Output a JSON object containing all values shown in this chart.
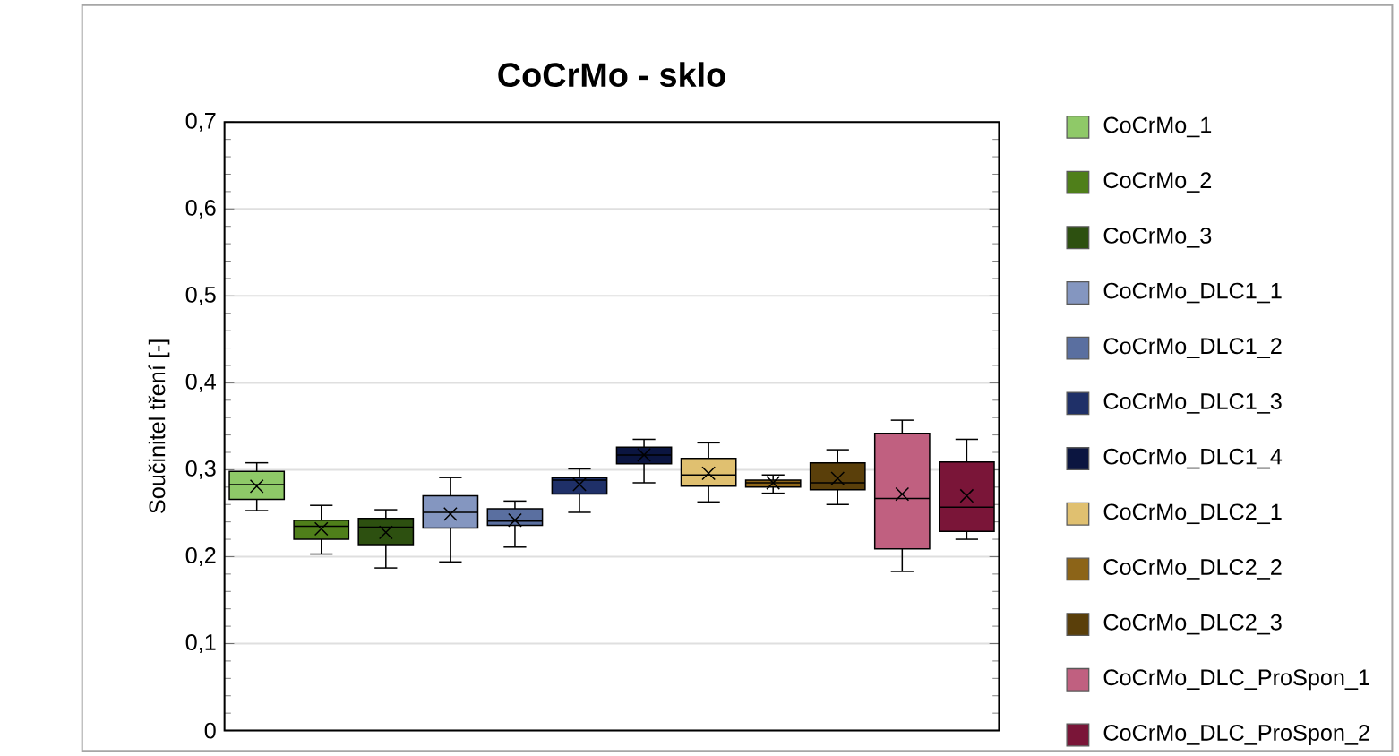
{
  "chart_data": {
    "type": "box",
    "title": "CoCrMo - sklo",
    "ylabel": "Součinitel tření [-]",
    "categories": [
      null,
      null,
      null,
      null,
      null,
      null,
      null,
      null,
      null,
      null,
      null,
      null
    ],
    "ylim": [
      0,
      0.7
    ],
    "yticks": [
      0,
      {
        "value": 0.1,
        "label": "0,1"
      },
      {
        "value": 0.2,
        "label": "0,2"
      },
      {
        "value": 0.3,
        "label": "0,3"
      },
      {
        "value": 0.4,
        "label": "0,4"
      },
      {
        "value": 0.5,
        "label": "0,5"
      },
      {
        "value": 0.6,
        "label": "0,6"
      },
      {
        "value": 0.7,
        "label": "0,7"
      }
    ],
    "grid": "y",
    "legend": "right",
    "series": [
      {
        "name": "CoCrMo_1",
        "color": "#8fc968",
        "boxes": [
          {
            "low": 0.253,
            "q1": 0.266,
            "median": 0.283,
            "q3": 0.298,
            "high": 0.308,
            "mean": 0.281
          },
          null,
          null,
          null,
          null,
          null,
          null,
          null,
          null,
          null,
          null,
          null
        ]
      },
      {
        "name": "CoCrMo_2",
        "color": "#4f7f1a",
        "boxes": [
          null,
          {
            "low": 0.203,
            "q1": 0.22,
            "median": 0.235,
            "q3": 0.242,
            "high": 0.259,
            "mean": 0.232
          },
          null,
          null,
          null,
          null,
          null,
          null,
          null,
          null,
          null,
          null
        ]
      },
      {
        "name": "CoCrMo_3",
        "color": "#2d5010",
        "boxes": [
          null,
          null,
          {
            "low": 0.187,
            "q1": 0.214,
            "median": 0.234,
            "q3": 0.244,
            "high": 0.254,
            "mean": 0.228
          },
          null,
          null,
          null,
          null,
          null,
          null,
          null,
          null,
          null
        ]
      },
      {
        "name": "CoCrMo_DLC1_1",
        "color": "#8496c0",
        "boxes": [
          null,
          null,
          null,
          {
            "low": 0.194,
            "q1": 0.233,
            "median": 0.251,
            "q3": 0.27,
            "high": 0.291,
            "mean": 0.249
          },
          null,
          null,
          null,
          null,
          null,
          null,
          null,
          null
        ]
      },
      {
        "name": "CoCrMo_DLC1_2",
        "color": "#5a6fa0",
        "boxes": [
          null,
          null,
          null,
          null,
          {
            "low": 0.211,
            "q1": 0.236,
            "median": 0.241,
            "q3": 0.255,
            "high": 0.264,
            "mean": 0.242
          },
          null,
          null,
          null,
          null,
          null,
          null,
          null
        ]
      },
      {
        "name": "CoCrMo_DLC1_3",
        "color": "#1f3068",
        "boxes": [
          null,
          null,
          null,
          null,
          null,
          {
            "low": 0.251,
            "q1": 0.272,
            "median": 0.288,
            "q3": 0.291,
            "high": 0.301,
            "mean": 0.283
          },
          null,
          null,
          null,
          null,
          null,
          null
        ]
      },
      {
        "name": "CoCrMo_DLC1_4",
        "color": "#0b1540",
        "boxes": [
          null,
          null,
          null,
          null,
          null,
          null,
          {
            "low": 0.285,
            "q1": 0.307,
            "median": 0.317,
            "q3": 0.326,
            "high": 0.335,
            "mean": 0.317
          },
          null,
          null,
          null,
          null,
          null
        ]
      },
      {
        "name": "CoCrMo_DLC2_1",
        "color": "#e0c070",
        "boxes": [
          null,
          null,
          null,
          null,
          null,
          null,
          null,
          {
            "low": 0.263,
            "q1": 0.281,
            "median": 0.294,
            "q3": 0.313,
            "high": 0.331,
            "mean": 0.296
          },
          null,
          null,
          null,
          null
        ]
      },
      {
        "name": "CoCrMo_DLC2_2",
        "color": "#8c6418",
        "boxes": [
          null,
          null,
          null,
          null,
          null,
          null,
          null,
          null,
          {
            "low": 0.273,
            "q1": 0.28,
            "median": 0.285,
            "q3": 0.288,
            "high": 0.294,
            "mean": 0.285
          },
          null,
          null,
          null
        ]
      },
      {
        "name": "CoCrMo_DLC2_3",
        "color": "#5a3f0a",
        "boxes": [
          null,
          null,
          null,
          null,
          null,
          null,
          null,
          null,
          null,
          {
            "low": 0.26,
            "q1": 0.277,
            "median": 0.285,
            "q3": 0.308,
            "high": 0.323,
            "mean": 0.29
          },
          null,
          null
        ]
      },
      {
        "name": "CoCrMo_DLC_ProSpon_1",
        "color": "#c06080",
        "boxes": [
          null,
          null,
          null,
          null,
          null,
          null,
          null,
          null,
          null,
          null,
          {
            "low": 0.183,
            "q1": 0.209,
            "median": 0.267,
            "q3": 0.342,
            "high": 0.357,
            "mean": 0.272
          },
          null
        ]
      },
      {
        "name": "CoCrMo_DLC_ProSpon_2",
        "color": "#7a1538",
        "boxes": [
          null,
          null,
          null,
          null,
          null,
          null,
          null,
          null,
          null,
          null,
          null,
          {
            "low": 0.22,
            "q1": 0.229,
            "median": 0.257,
            "q3": 0.309,
            "high": 0.335,
            "mean": 0.27
          }
        ]
      }
    ]
  }
}
